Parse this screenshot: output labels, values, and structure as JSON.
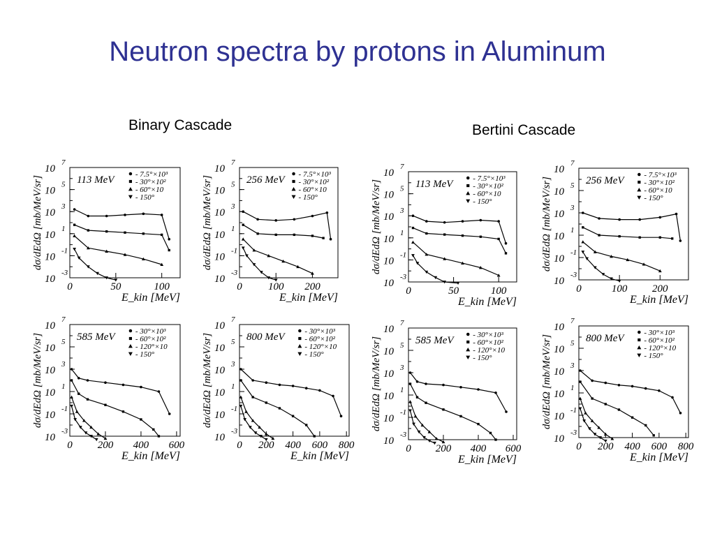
{
  "slide": {
    "title": "Neutron spectra by protons in Aluminum",
    "groups": [
      {
        "name": "Binary Cascade"
      },
      {
        "name": "Bertini Cascade"
      }
    ]
  },
  "chart_data": [
    {
      "type": "line",
      "group": "Binary Cascade",
      "energy": "113 MeV",
      "xlabel": "E_kin [MeV]",
      "ylabel": "dσ/dEdΩ [mb/MeV/sr]",
      "xlim": [
        0,
        120
      ],
      "xticks": [
        0,
        50,
        100
      ],
      "yscale": "log",
      "ylim": [
        -3,
        7
      ],
      "yticks": [
        -3,
        -1,
        1,
        3,
        5,
        7
      ],
      "legend": [
        "7.5°×10³",
        "30°×10²",
        "60°×10",
        "150°"
      ],
      "series": [
        {
          "name": "7.5°×10³",
          "marker": "circle",
          "x": [
            5,
            20,
            40,
            60,
            80,
            100,
            108
          ],
          "y": [
            3.2,
            2.6,
            2.6,
            2.7,
            2.8,
            2.7,
            0.5
          ]
        },
        {
          "name": "30°×10²",
          "marker": "square",
          "x": [
            5,
            20,
            40,
            60,
            80,
            100,
            108
          ],
          "y": [
            1.8,
            1.3,
            1.2,
            1.1,
            1.0,
            0.9,
            -0.5
          ]
        },
        {
          "name": "60°×10",
          "marker": "triangle-up",
          "x": [
            5,
            20,
            40,
            60,
            80,
            100
          ],
          "y": [
            0.8,
            -0.3,
            -0.6,
            -0.9,
            -1.3,
            -1.8
          ]
        },
        {
          "name": "150°",
          "marker": "triangle-down",
          "x": [
            5,
            10,
            20,
            30,
            40,
            50
          ],
          "y": [
            -0.4,
            -1.2,
            -2.0,
            -2.6,
            -3.0,
            -3.2
          ]
        }
      ]
    },
    {
      "type": "line",
      "group": "Binary Cascade",
      "energy": "256 MeV",
      "xlabel": "E_kin [MeV]",
      "ylabel": "dσ/dEdΩ [mb/MeV/sr]",
      "xlim": [
        0,
        270
      ],
      "xticks": [
        0,
        100,
        200
      ],
      "yscale": "log",
      "ylim": [
        -3,
        7
      ],
      "yticks": [
        -3,
        -1,
        1,
        3,
        5,
        7
      ],
      "legend": [
        "7.5°×10³",
        "30°×10²",
        "60°×10",
        "150°"
      ],
      "series": [
        {
          "name": "7.5°×10³",
          "marker": "circle",
          "x": [
            10,
            50,
            100,
            150,
            200,
            240,
            250
          ],
          "y": [
            3.0,
            2.3,
            2.2,
            2.3,
            2.6,
            2.9,
            0.5
          ]
        },
        {
          "name": "30°×10²",
          "marker": "square",
          "x": [
            10,
            50,
            100,
            150,
            200,
            230
          ],
          "y": [
            1.8,
            1.0,
            0.9,
            0.9,
            0.8,
            0.6
          ]
        },
        {
          "name": "60°×10",
          "marker": "triangle-up",
          "x": [
            10,
            40,
            80,
            120,
            160,
            200
          ],
          "y": [
            0.5,
            -0.5,
            -1.0,
            -1.5,
            -2.0,
            -2.6
          ]
        },
        {
          "name": "150°",
          "marker": "triangle-down",
          "x": [
            10,
            20,
            40,
            60,
            80,
            100
          ],
          "y": [
            -0.3,
            -1.0,
            -1.8,
            -2.5,
            -3.0,
            -3.2
          ]
        }
      ]
    },
    {
      "type": "line",
      "group": "Bertini Cascade",
      "energy": "113 MeV",
      "xlabel": "E_kin [MeV]",
      "ylabel": "dσ/dEdΩ [mb/MeV/sr]",
      "xlim": [
        0,
        120
      ],
      "xticks": [
        0,
        50,
        100
      ],
      "yscale": "log",
      "ylim": [
        -3,
        7
      ],
      "yticks": [
        -3,
        -1,
        1,
        3,
        5,
        7
      ],
      "legend": [
        "7.5°×10³",
        "30°×10²",
        "60°×10",
        "150°"
      ],
      "series": [
        {
          "name": "7.5°×10³",
          "marker": "circle",
          "x": [
            5,
            20,
            40,
            60,
            80,
            100,
            108
          ],
          "y": [
            3.0,
            2.5,
            2.4,
            2.5,
            2.6,
            2.5,
            0.5
          ]
        },
        {
          "name": "30°×10²",
          "marker": "square",
          "x": [
            5,
            20,
            40,
            60,
            80,
            100,
            108
          ],
          "y": [
            1.9,
            1.4,
            1.3,
            1.2,
            1.1,
            0.9,
            -0.4
          ]
        },
        {
          "name": "60°×10",
          "marker": "triangle-up",
          "x": [
            5,
            20,
            40,
            60,
            80,
            100
          ],
          "y": [
            0.6,
            -0.5,
            -0.9,
            -1.3,
            -1.7,
            -2.4
          ]
        },
        {
          "name": "150°",
          "marker": "triangle-down",
          "x": [
            5,
            10,
            20,
            30,
            40,
            55
          ],
          "y": [
            -0.6,
            -1.3,
            -2.1,
            -2.6,
            -3.0,
            -3.1
          ]
        }
      ]
    },
    {
      "type": "line",
      "group": "Bertini Cascade",
      "energy": "256 MeV",
      "xlabel": "E_kin [MeV]",
      "ylabel": "dσ/dEdΩ [mb/MeV/sr]",
      "xlim": [
        0,
        270
      ],
      "xticks": [
        0,
        100,
        200
      ],
      "yscale": "log",
      "ylim": [
        -3,
        7
      ],
      "yticks": [
        -3,
        -1,
        1,
        3,
        5,
        7
      ],
      "legend": [
        "7.5°×10³",
        "30°×10²",
        "60°×10",
        "150°"
      ],
      "series": [
        {
          "name": "7.5°×10³",
          "marker": "circle",
          "x": [
            10,
            50,
            100,
            150,
            200,
            240,
            250
          ],
          "y": [
            3.0,
            2.5,
            2.4,
            2.4,
            2.6,
            2.9,
            0.5
          ]
        },
        {
          "name": "30°×10²",
          "marker": "square",
          "x": [
            10,
            50,
            100,
            150,
            200,
            230
          ],
          "y": [
            1.7,
            1.0,
            0.9,
            0.8,
            0.8,
            0.7
          ]
        },
        {
          "name": "60°×10",
          "marker": "triangle-up",
          "x": [
            10,
            40,
            80,
            120,
            160,
            200
          ],
          "y": [
            0.4,
            -0.5,
            -0.9,
            -1.2,
            -1.6,
            -2.2
          ]
        },
        {
          "name": "150°",
          "marker": "triangle-down",
          "x": [
            10,
            20,
            40,
            60,
            80,
            100
          ],
          "y": [
            -0.5,
            -1.1,
            -1.9,
            -2.5,
            -2.9,
            -3.1
          ]
        }
      ]
    },
    {
      "type": "line",
      "group": "Binary Cascade",
      "energy": "585 MeV",
      "xlabel": "E_kin [MeV]",
      "ylabel": "dσ/dEdΩ [mb/MeV/sr]",
      "xlim": [
        0,
        620
      ],
      "xticks": [
        0,
        200,
        400,
        600
      ],
      "yscale": "log",
      "ylim": [
        -3,
        7
      ],
      "yticks": [
        -3,
        -1,
        1,
        3,
        5,
        7
      ],
      "legend": [
        "30°×10³",
        "60°×10²",
        "120°×10",
        "150°"
      ],
      "series": [
        {
          "name": "30°×10³",
          "marker": "circle",
          "x": [
            10,
            50,
            100,
            200,
            300,
            400,
            500,
            560
          ],
          "y": [
            3.0,
            2.2,
            2.0,
            1.8,
            1.6,
            1.4,
            1.0,
            -1.0
          ]
        },
        {
          "name": "60°×10²",
          "marker": "square",
          "x": [
            10,
            50,
            100,
            200,
            300,
            400,
            470,
            500
          ],
          "y": [
            2.0,
            0.8,
            0.3,
            -0.2,
            -0.8,
            -1.5,
            -2.4,
            -3.0
          ]
        },
        {
          "name": "120°×10",
          "marker": "triangle-up",
          "x": [
            10,
            40,
            80,
            120,
            160,
            200
          ],
          "y": [
            0.5,
            -0.8,
            -1.6,
            -2.2,
            -2.8,
            -3.2
          ]
        },
        {
          "name": "150°",
          "marker": "triangle-down",
          "x": [
            10,
            30,
            60,
            90,
            120,
            150
          ],
          "y": [
            -0.3,
            -1.5,
            -2.2,
            -2.7,
            -3.0,
            -3.3
          ]
        }
      ]
    },
    {
      "type": "line",
      "group": "Binary Cascade",
      "energy": "800 MeV",
      "xlabel": "E_kin [MeV]",
      "ylabel": "dσ/dEdΩ [mb/MeV/sr]",
      "xlim": [
        0,
        820
      ],
      "xticks": [
        0,
        200,
        400,
        600,
        800
      ],
      "yscale": "log",
      "ylim": [
        -3,
        7
      ],
      "yticks": [
        -3,
        -1,
        1,
        3,
        5,
        7
      ],
      "legend": [
        "30°×10³",
        "60°×10²",
        "120°×10",
        "150°"
      ],
      "series": [
        {
          "name": "30°×10³",
          "marker": "circle",
          "x": [
            10,
            100,
            200,
            300,
            400,
            500,
            600,
            700,
            760
          ],
          "y": [
            3.0,
            2.0,
            1.8,
            1.6,
            1.5,
            1.3,
            1.1,
            0.6,
            -1.2
          ]
        },
        {
          "name": "60°×10²",
          "marker": "square",
          "x": [
            10,
            100,
            200,
            300,
            400,
            500,
            560
          ],
          "y": [
            2.0,
            0.5,
            0.0,
            -0.5,
            -1.2,
            -2.0,
            -3.0
          ]
        },
        {
          "name": "120°×10",
          "marker": "triangle-up",
          "x": [
            10,
            50,
            100,
            150,
            200,
            250
          ],
          "y": [
            0.5,
            -0.8,
            -1.6,
            -2.2,
            -2.8,
            -3.2
          ]
        },
        {
          "name": "150°",
          "marker": "triangle-down",
          "x": [
            10,
            40,
            80,
            120,
            160,
            200
          ],
          "y": [
            -0.3,
            -1.5,
            -2.2,
            -2.7,
            -3.0,
            -3.3
          ]
        }
      ]
    },
    {
      "type": "line",
      "group": "Bertini Cascade",
      "energy": "585 MeV",
      "xlabel": "E_kin [MeV]",
      "ylabel": "dσ/dEdΩ [mb/MeV/sr]",
      "xlim": [
        0,
        620
      ],
      "xticks": [
        0,
        200,
        400,
        600
      ],
      "yscale": "log",
      "ylim": [
        -3,
        7
      ],
      "yticks": [
        -3,
        -1,
        1,
        3,
        5,
        7
      ],
      "legend": [
        "30°×10³",
        "60°×10²",
        "120°×10",
        "150°"
      ],
      "series": [
        {
          "name": "30°×10³",
          "marker": "circle",
          "x": [
            10,
            50,
            100,
            200,
            300,
            400,
            500,
            560
          ],
          "y": [
            3.0,
            2.2,
            2.0,
            1.9,
            1.7,
            1.5,
            1.2,
            -0.5
          ]
        },
        {
          "name": "60°×10²",
          "marker": "square",
          "x": [
            10,
            50,
            100,
            200,
            300,
            400,
            470,
            500
          ],
          "y": [
            2.0,
            0.8,
            0.3,
            -0.3,
            -0.9,
            -1.6,
            -2.4,
            -3.0
          ]
        },
        {
          "name": "120°×10",
          "marker": "triangle-up",
          "x": [
            10,
            40,
            80,
            120,
            160,
            200
          ],
          "y": [
            0.4,
            -0.9,
            -1.7,
            -2.3,
            -2.9,
            -3.2
          ]
        },
        {
          "name": "150°",
          "marker": "triangle-down",
          "x": [
            10,
            30,
            60,
            90,
            120,
            150
          ],
          "y": [
            -0.4,
            -1.6,
            -2.3,
            -2.8,
            -3.1,
            -3.3
          ]
        }
      ]
    },
    {
      "type": "line",
      "group": "Bertini Cascade",
      "energy": "800 MeV",
      "xlabel": "E_kin [MeV]",
      "ylabel": "dσ/dEdΩ [mb/MeV/sr]",
      "xlim": [
        0,
        820
      ],
      "xticks": [
        0,
        200,
        400,
        600,
        800
      ],
      "yscale": "log",
      "ylim": [
        -3,
        7
      ],
      "yticks": [
        -3,
        -1,
        1,
        3,
        5,
        7
      ],
      "legend": [
        "30°×10³",
        "60°×10²",
        "120°×10",
        "150°"
      ],
      "series": [
        {
          "name": "30°×10³",
          "marker": "circle",
          "x": [
            10,
            100,
            200,
            300,
            400,
            500,
            600,
            700,
            760
          ],
          "y": [
            3.0,
            2.1,
            1.9,
            1.7,
            1.6,
            1.4,
            1.2,
            0.6,
            -0.8
          ]
        },
        {
          "name": "60°×10²",
          "marker": "square",
          "x": [
            10,
            100,
            200,
            300,
            400,
            500,
            560
          ],
          "y": [
            2.0,
            0.5,
            0.0,
            -0.5,
            -1.2,
            -1.9,
            -2.8
          ]
        },
        {
          "name": "120°×10",
          "marker": "triangle-up",
          "x": [
            10,
            50,
            100,
            150,
            200,
            250
          ],
          "y": [
            0.5,
            -0.8,
            -1.5,
            -2.1,
            -2.7,
            -3.1
          ]
        },
        {
          "name": "150°",
          "marker": "triangle-down",
          "x": [
            10,
            40,
            80,
            120,
            160,
            200
          ],
          "y": [
            -0.4,
            -1.5,
            -2.2,
            -2.7,
            -3.0,
            -3.3
          ]
        }
      ]
    }
  ]
}
